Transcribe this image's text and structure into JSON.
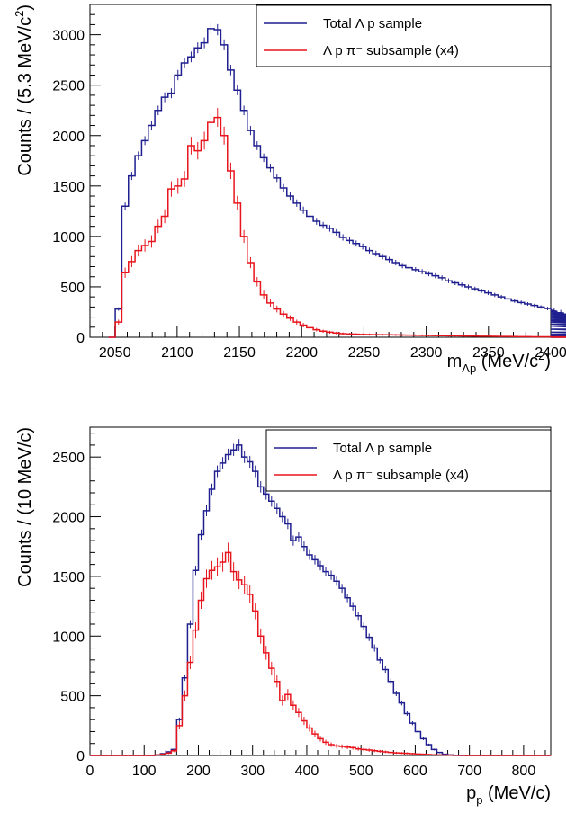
{
  "colors": {
    "total": "#1f1f8f",
    "sub": "#e8141c",
    "axis": "#000000"
  },
  "chart_data": [
    {
      "type": "histogram",
      "xlim": [
        2030,
        2400
      ],
      "ylim": [
        0,
        3300
      ],
      "xticks": [
        2050,
        2100,
        2150,
        2200,
        2250,
        2300,
        2350,
        2400
      ],
      "yticks": [
        0,
        500,
        1000,
        1500,
        2000,
        2500,
        3000
      ],
      "ylabel": {
        "main": "Counts / (5.3 MeV/c",
        "sup": "2",
        "close": ")"
      },
      "xlabel": {
        "main": "m",
        "sub": "Λp",
        "rest": " (MeV/c",
        "sup": "2",
        "close": ")"
      },
      "legend_position": "top-right",
      "bin_width": 5.3,
      "series": [
        {
          "name": "Total Λ p sample",
          "color": "#1f1f8f",
          "x_start": 2045.0,
          "values": [
            0,
            280,
            1300,
            1600,
            1800,
            1950,
            2100,
            2250,
            2380,
            2420,
            2600,
            2720,
            2780,
            2870,
            2920,
            3060,
            3050,
            2900,
            2650,
            2450,
            2250,
            2050,
            1900,
            1780,
            1680,
            1580,
            1480,
            1400,
            1330,
            1260,
            1200,
            1150,
            1110,
            1080,
            1040,
            990,
            960,
            930,
            900,
            860,
            830,
            800,
            770,
            740,
            710,
            690,
            670,
            650,
            630,
            610,
            590,
            560,
            540,
            520,
            500,
            480,
            460,
            440,
            420,
            400,
            380,
            360,
            345,
            330,
            315,
            300,
            285,
            270,
            255,
            240,
            225,
            210,
            195,
            180,
            165,
            150,
            130,
            110,
            80,
            50,
            30,
            15,
            5,
            0,
            0,
            0,
            0,
            0
          ]
        },
        {
          "name": "Λ p π⁻ subsample (x4)",
          "color": "#e8141c",
          "x_start": 2045.0,
          "values": [
            0,
            150,
            640,
            750,
            860,
            910,
            950,
            1100,
            1200,
            1470,
            1500,
            1570,
            1900,
            1850,
            1950,
            2130,
            2180,
            2000,
            1650,
            1330,
            1000,
            740,
            550,
            420,
            340,
            280,
            230,
            190,
            150,
            120,
            95,
            75,
            60,
            50,
            42,
            36,
            32,
            30,
            28,
            27,
            26,
            25,
            24,
            23,
            22,
            21,
            20,
            19,
            18,
            17,
            16,
            15,
            14,
            13,
            12,
            11,
            10,
            10,
            9,
            8,
            8,
            7,
            6,
            6,
            5,
            5,
            4,
            4,
            3,
            3,
            2,
            2,
            2,
            1,
            1,
            1,
            0,
            0,
            0,
            0,
            0,
            0,
            0,
            0,
            0,
            0,
            0,
            0
          ]
        }
      ]
    },
    {
      "type": "histogram",
      "xlim": [
        0,
        850
      ],
      "ylim": [
        0,
        2750
      ],
      "xticks": [
        0,
        100,
        200,
        300,
        400,
        500,
        600,
        700,
        800
      ],
      "yticks": [
        0,
        500,
        1000,
        1500,
        2000,
        2500
      ],
      "ylabel": {
        "main": "Counts / (10 MeV/c)",
        "sup": "",
        "close": ""
      },
      "xlabel": {
        "main": "p",
        "sub": "p",
        "rest": " (MeV/c)",
        "sup": "",
        "close": ""
      },
      "legend_position": "top-right",
      "bin_width": 10,
      "series": [
        {
          "name": "Total Λ p sample",
          "color": "#1f1f8f",
          "x_start": 0,
          "values": [
            0,
            0,
            0,
            0,
            0,
            0,
            0,
            0,
            0,
            0,
            0,
            0,
            5,
            15,
            30,
            50,
            300,
            650,
            1100,
            1550,
            1850,
            2050,
            2230,
            2380,
            2450,
            2520,
            2560,
            2600,
            2500,
            2460,
            2380,
            2250,
            2190,
            2130,
            2070,
            2000,
            1940,
            1800,
            1830,
            1750,
            1680,
            1640,
            1590,
            1540,
            1510,
            1460,
            1400,
            1320,
            1250,
            1170,
            1080,
            990,
            900,
            800,
            720,
            620,
            520,
            440,
            350,
            270,
            200,
            140,
            90,
            50,
            25,
            10,
            5,
            0,
            0,
            0,
            0,
            0,
            0,
            0,
            0,
            0,
            0,
            0,
            0,
            0,
            0,
            0,
            0,
            0,
            0
          ]
        },
        {
          "name": "Λ p π⁻ subsample (x4)",
          "color": "#e8141c",
          "x_start": 0,
          "values": [
            0,
            0,
            0,
            0,
            0,
            0,
            0,
            0,
            0,
            0,
            0,
            0,
            5,
            10,
            20,
            40,
            250,
            500,
            780,
            1050,
            1300,
            1480,
            1550,
            1580,
            1620,
            1700,
            1540,
            1470,
            1430,
            1350,
            1210,
            1000,
            860,
            730,
            620,
            460,
            510,
            420,
            360,
            290,
            230,
            180,
            140,
            110,
            90,
            80,
            75,
            70,
            65,
            55,
            50,
            45,
            40,
            35,
            30,
            25,
            22,
            20,
            18,
            15,
            12,
            10,
            8,
            6,
            5,
            4,
            3,
            2,
            1,
            0,
            0,
            0,
            0,
            0,
            0,
            0,
            0,
            0,
            0,
            0,
            0,
            0,
            0,
            0,
            0
          ]
        }
      ]
    }
  ]
}
